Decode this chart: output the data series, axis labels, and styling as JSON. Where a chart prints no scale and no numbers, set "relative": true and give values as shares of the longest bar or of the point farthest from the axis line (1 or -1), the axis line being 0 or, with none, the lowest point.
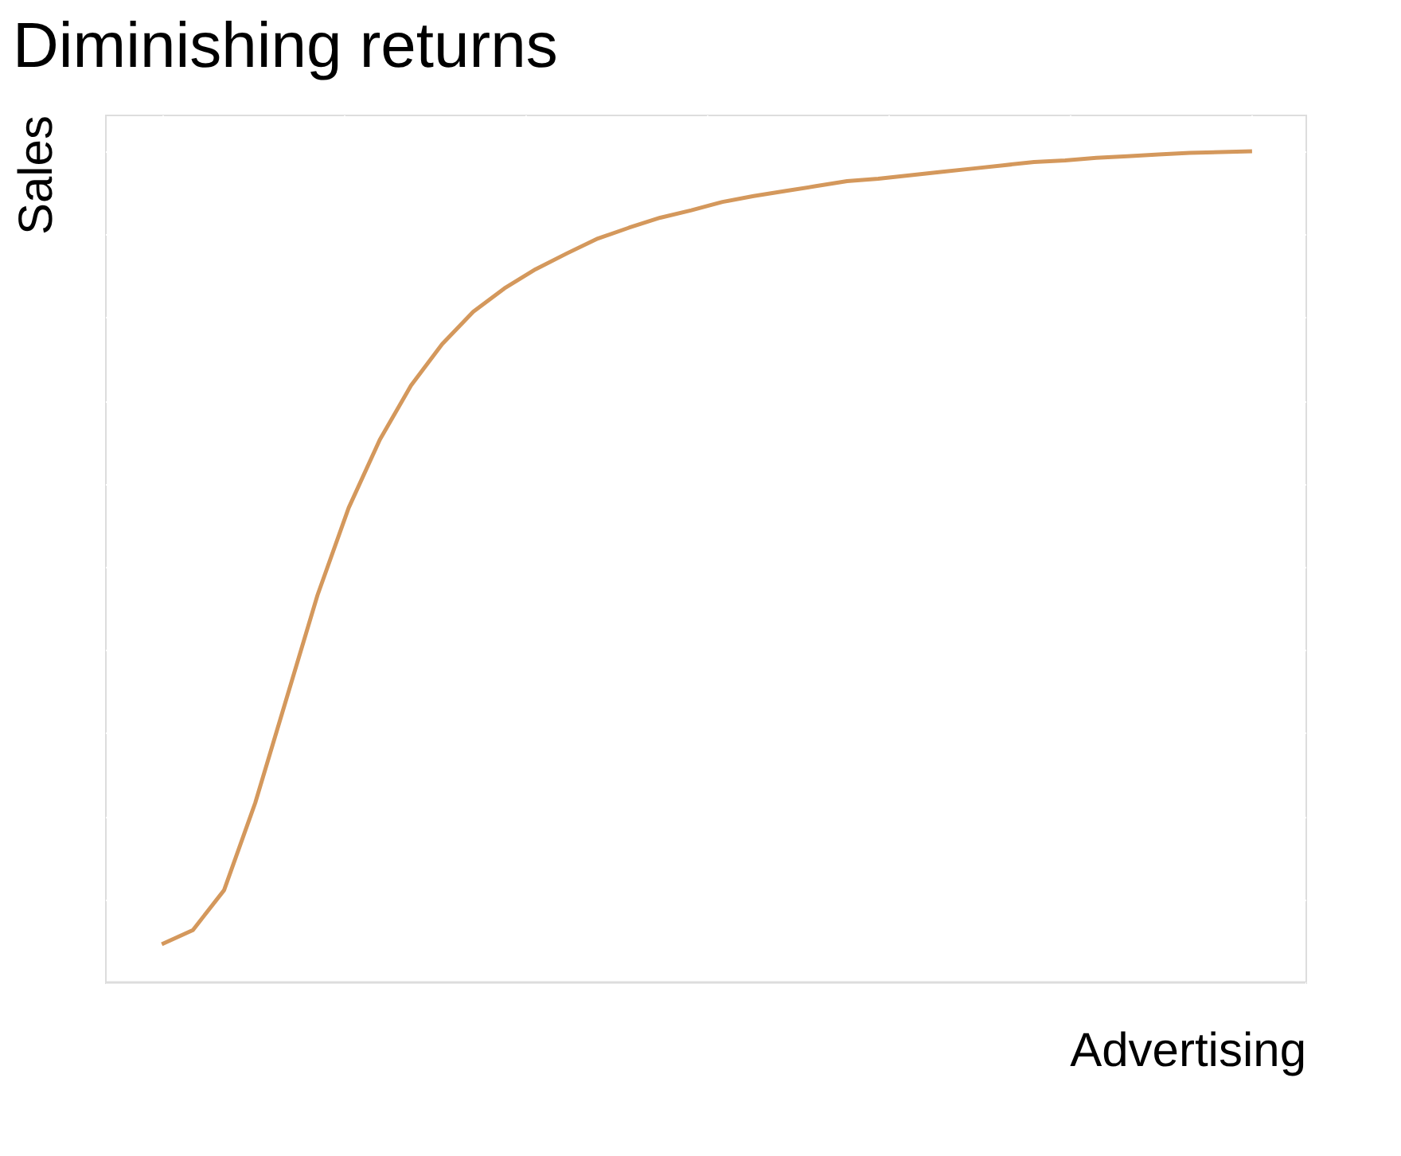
{
  "chart_data": {
    "type": "line",
    "title": "Diminishing returns",
    "xlabel": "Advertising",
    "ylabel": "Sales",
    "relative": true,
    "grid": true,
    "marker": "none",
    "line_style": "solid",
    "categories": [
      null,
      null,
      null,
      null,
      null,
      null,
      null,
      null,
      null,
      null,
      null,
      null,
      null,
      null,
      null,
      null,
      null,
      null,
      null,
      null,
      null,
      null,
      null,
      null,
      null,
      null,
      null,
      null,
      null,
      null,
      null,
      null,
      null,
      null,
      null,
      null
    ],
    "series": [
      {
        "color": "#d4985c",
        "values": [
          0.046,
          0.063,
          0.111,
          0.216,
          0.341,
          0.466,
          0.571,
          0.653,
          0.718,
          0.768,
          0.807,
          0.835,
          0.858,
          0.877,
          0.895,
          0.908,
          0.92,
          0.929,
          0.939,
          0.946,
          0.952,
          0.958,
          0.964,
          0.967,
          0.971,
          0.975,
          0.979,
          0.983,
          0.987,
          0.989,
          0.992,
          0.994,
          0.996,
          0.998,
          0.999,
          1.0
        ]
      }
    ]
  }
}
